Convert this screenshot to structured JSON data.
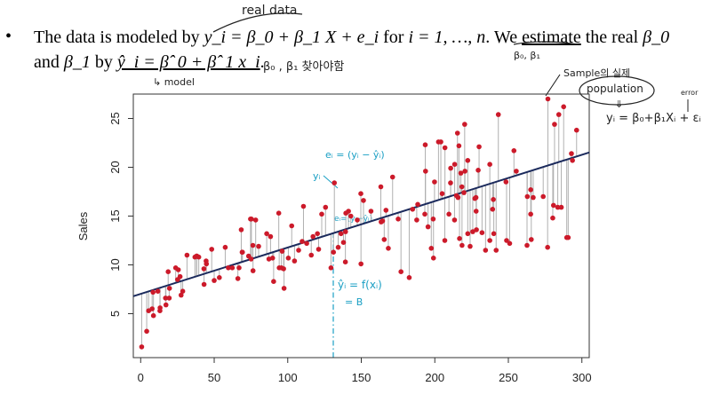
{
  "text": {
    "bullet": "•",
    "line1_prefix": "The data is modeled by ",
    "line1_eq": "y_i = β_0 + β_1 X + e_i",
    "line1_mid": " for ",
    "line1_range": "i = 1, …, n",
    "line1_suffix_a": ". We ",
    "line1_estimate": "estimate",
    "line1_suffix_b": " the real ",
    "line1_beta0": "β_0",
    "line2_prefix": "and ",
    "line2_beta1": "β_1",
    "line2_by": " by ",
    "line2_eq": "ŷ_i = β̂_0 + β̂_1 x_i",
    "line2_end": "."
  },
  "handwritten": {
    "real_data": "real data",
    "model": "↳ model",
    "find_betas": "β₀ , β₁  찾아야함",
    "beta_pair": "β₀, β₁",
    "sample_real": "Sample의 실제",
    "population": "population",
    "pop_arrow": "⇓",
    "pop_eq": "yᵢ = β₀+β₁Xᵢ + εᵢ",
    "error": "error",
    "ei_formula": "eᵢ = (yᵢ − ŷᵢ)",
    "yi_label": "yᵢ",
    "ei_small": "eᵢ=(yᵢ−ŷᵢ)",
    "yhat_formula": "ŷᵢ = f(xᵢ)",
    "eq_b": "= B"
  },
  "colors": {
    "points": "#cc1a2a",
    "regression_line": "#1b2a5c",
    "residuals": "#b0b0b0",
    "annotation_blue": "#1a9fc4",
    "annotation_black": "#222222"
  },
  "chart_data": {
    "type": "scatter",
    "ylabel": "Sales",
    "xlabel": "",
    "xlim": [
      -5,
      305
    ],
    "ylim": [
      0.5,
      27.5
    ],
    "xticks": [
      "0",
      "50",
      "100",
      "150",
      "200",
      "250",
      "300"
    ],
    "yticks": [
      "5",
      "10",
      "15",
      "20",
      "25"
    ],
    "regression_line": {
      "intercept": 7.03,
      "slope": 0.0475
    },
    "points": [
      [
        0.7,
        1.6
      ],
      [
        4.1,
        3.2
      ],
      [
        5.4,
        5.3
      ],
      [
        7.8,
        5.5
      ],
      [
        8.4,
        7.2
      ],
      [
        8.7,
        4.8
      ],
      [
        11.7,
        7.3
      ],
      [
        13.1,
        5.3
      ],
      [
        13.2,
        5.6
      ],
      [
        16.9,
        6.6
      ],
      [
        17.2,
        5.9
      ],
      [
        18.7,
        9.3
      ],
      [
        19.4,
        6.6
      ],
      [
        19.6,
        7.6
      ],
      [
        23.8,
        9.7
      ],
      [
        25.1,
        8.5
      ],
      [
        25.6,
        9.5
      ],
      [
        26.8,
        8.8
      ],
      [
        27.5,
        6.9
      ],
      [
        28.6,
        7.3
      ],
      [
        31.5,
        11.0
      ],
      [
        36.9,
        10.8
      ],
      [
        38.0,
        10.9
      ],
      [
        38.2,
        10.9
      ],
      [
        39.5,
        10.8
      ],
      [
        43.0,
        9.6
      ],
      [
        43.1,
        8.0
      ],
      [
        44.5,
        10.4
      ],
      [
        44.7,
        10.1
      ],
      [
        48.3,
        11.6
      ],
      [
        50.0,
        8.4
      ],
      [
        53.5,
        8.7
      ],
      [
        57.5,
        11.8
      ],
      [
        59.6,
        9.7
      ],
      [
        62.3,
        9.7
      ],
      [
        66.1,
        8.6
      ],
      [
        66.9,
        9.7
      ],
      [
        68.4,
        13.6
      ],
      [
        69.0,
        11.3
      ],
      [
        69.2,
        11.3
      ],
      [
        73.4,
        10.9
      ],
      [
        74.7,
        14.7
      ],
      [
        75.1,
        10.6
      ],
      [
        75.3,
        14.7
      ],
      [
        76.3,
        12.0
      ],
      [
        76.4,
        9.4
      ],
      [
        78.2,
        14.6
      ],
      [
        80.2,
        11.9
      ],
      [
        85.7,
        13.2
      ],
      [
        87.2,
        10.6
      ],
      [
        88.3,
        12.9
      ],
      [
        89.7,
        10.7
      ],
      [
        90.4,
        8.3
      ],
      [
        93.9,
        15.3
      ],
      [
        94.2,
        9.7
      ],
      [
        95.7,
        9.7
      ],
      [
        96.2,
        11.4
      ],
      [
        97.2,
        9.6
      ],
      [
        97.5,
        7.6
      ],
      [
        100.4,
        10.7
      ],
      [
        102.7,
        14.0
      ],
      [
        104.6,
        10.4
      ],
      [
        107.4,
        11.5
      ],
      [
        109.8,
        12.4
      ],
      [
        110.7,
        16.0
      ],
      [
        112.9,
        12.2
      ],
      [
        116.0,
        11.0
      ],
      [
        117.2,
        12.9
      ],
      [
        120.2,
        13.2
      ],
      [
        121.0,
        11.6
      ],
      [
        123.1,
        15.2
      ],
      [
        125.7,
        15.9
      ],
      [
        129.4,
        9.7
      ],
      [
        131.1,
        11.3
      ],
      [
        131.7,
        18.4
      ],
      [
        134.3,
        11.8
      ],
      [
        136.2,
        13.2
      ],
      [
        137.9,
        12.3
      ],
      [
        139.2,
        10.3
      ],
      [
        139.3,
        13.4
      ],
      [
        139.5,
        15.3
      ],
      [
        141.3,
        15.5
      ],
      [
        142.9,
        15.0
      ],
      [
        147.3,
        14.6
      ],
      [
        149.7,
        17.3
      ],
      [
        149.8,
        10.1
      ],
      [
        151.5,
        16.6
      ],
      [
        156.6,
        15.5
      ],
      [
        163.3,
        18.0
      ],
      [
        163.5,
        14.4
      ],
      [
        164.5,
        14.5
      ],
      [
        165.6,
        12.6
      ],
      [
        166.8,
        15.6
      ],
      [
        168.4,
        11.7
      ],
      [
        171.3,
        19.0
      ],
      [
        175.1,
        14.7
      ],
      [
        177.0,
        9.3
      ],
      [
        182.6,
        8.7
      ],
      [
        184.9,
        15.7
      ],
      [
        187.7,
        14.6
      ],
      [
        188.4,
        16.2
      ],
      [
        193.2,
        15.2
      ],
      [
        193.5,
        22.3
      ],
      [
        193.7,
        19.6
      ],
      [
        195.4,
        13.9
      ],
      [
        197.6,
        11.7
      ],
      [
        198.9,
        14.7
      ],
      [
        199.1,
        10.7
      ],
      [
        199.8,
        18.5
      ],
      [
        202.5,
        22.6
      ],
      [
        204.1,
        22.6
      ],
      [
        205.0,
        17.3
      ],
      [
        206.8,
        12.5
      ],
      [
        206.9,
        22.0
      ],
      [
        209.6,
        15.2
      ],
      [
        210.7,
        18.4
      ],
      [
        210.8,
        19.9
      ],
      [
        213.4,
        14.6
      ],
      [
        213.5,
        20.3
      ],
      [
        214.7,
        17.1
      ],
      [
        215.4,
        23.5
      ],
      [
        215.8,
        16.9
      ],
      [
        216.4,
        22.2
      ],
      [
        216.8,
        12.7
      ],
      [
        217.7,
        19.4
      ],
      [
        218.4,
        18.0
      ],
      [
        218.5,
        12.0
      ],
      [
        219.8,
        17.4
      ],
      [
        220.3,
        24.4
      ],
      [
        220.5,
        19.6
      ],
      [
        222.4,
        13.2
      ],
      [
        222.4,
        20.7
      ],
      [
        224.0,
        11.9
      ],
      [
        225.8,
        13.4
      ],
      [
        227.2,
        16.8
      ],
      [
        228.0,
        16.9
      ],
      [
        228.1,
        15.5
      ],
      [
        228.3,
        13.6
      ],
      [
        229.5,
        19.7
      ],
      [
        230.1,
        22.1
      ],
      [
        232.1,
        13.3
      ],
      [
        234.5,
        11.5
      ],
      [
        237.4,
        12.5
      ],
      [
        237.4,
        20.3
      ],
      [
        239.3,
        15.7
      ],
      [
        239.8,
        16.7
      ],
      [
        240.1,
        13.2
      ],
      [
        241.7,
        11.5
      ],
      [
        243.2,
        25.4
      ],
      [
        248.4,
        18.5
      ],
      [
        248.8,
        12.5
      ],
      [
        250.9,
        12.2
      ],
      [
        253.8,
        21.7
      ],
      [
        255.4,
        19.6
      ],
      [
        262.7,
        12.0
      ],
      [
        262.9,
        17.0
      ],
      [
        265.2,
        15.2
      ],
      [
        265.2,
        17.7
      ],
      [
        265.6,
        12.6
      ],
      [
        266.9,
        16.9
      ],
      [
        273.7,
        17.0
      ],
      [
        276.7,
        11.8
      ],
      [
        276.9,
        27.0
      ],
      [
        280.2,
        14.8
      ],
      [
        280.7,
        16.1
      ],
      [
        281.4,
        24.4
      ],
      [
        283.6,
        15.9
      ],
      [
        284.3,
        25.4
      ],
      [
        286.0,
        15.9
      ],
      [
        287.6,
        26.2
      ],
      [
        289.7,
        12.8
      ],
      [
        290.7,
        12.8
      ],
      [
        292.9,
        21.4
      ],
      [
        293.6,
        20.7
      ],
      [
        296.4,
        23.8
      ]
    ]
  }
}
